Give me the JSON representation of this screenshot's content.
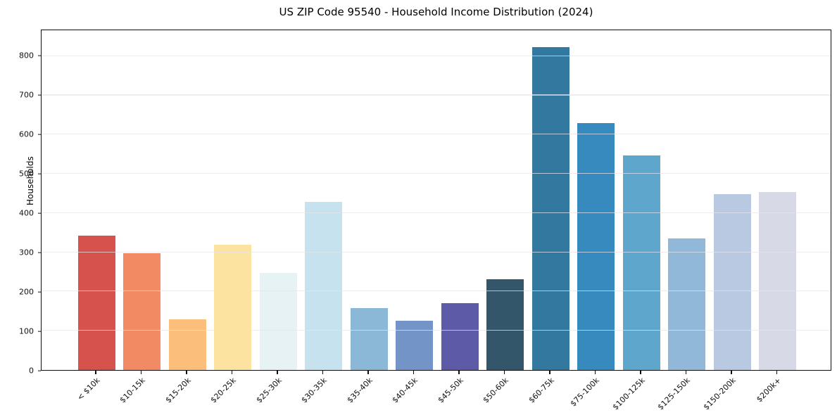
{
  "chart_data": {
    "type": "bar",
    "title": "US ZIP Code 95540 - Household Income Distribution (2024)",
    "xlabel": "",
    "ylabel": "Households",
    "categories": [
      "< $10k",
      "$10-15k",
      "$15-20k",
      "$20-25k",
      "$25-30k",
      "$30-35k",
      "$35-40k",
      "$40-45k",
      "$45-50k",
      "$50-60k",
      "$60-75k",
      "$75-100k",
      "$100-125k",
      "$125-150k",
      "$150-200k",
      "$200k+"
    ],
    "values": [
      342,
      297,
      130,
      319,
      248,
      428,
      157,
      126,
      170,
      232,
      823,
      629,
      546,
      335,
      448,
      453
    ],
    "bar_colors": [
      "#d6534d",
      "#f28a63",
      "#fcbe7b",
      "#fde3a0",
      "#e6f2f3",
      "#c5e2ee",
      "#8cb8d8",
      "#7294c6",
      "#5d5ba7",
      "#33566b",
      "#33799f",
      "#378abd",
      "#5ea6cc",
      "#91b8d8",
      "#bac9e2",
      "#d8d9e7"
    ],
    "ylim": [
      0,
      866
    ],
    "yticks": [
      0,
      100,
      200,
      300,
      400,
      500,
      600,
      700,
      800
    ],
    "grid": "horizontal",
    "legend": "none",
    "background": "#ffffff"
  }
}
